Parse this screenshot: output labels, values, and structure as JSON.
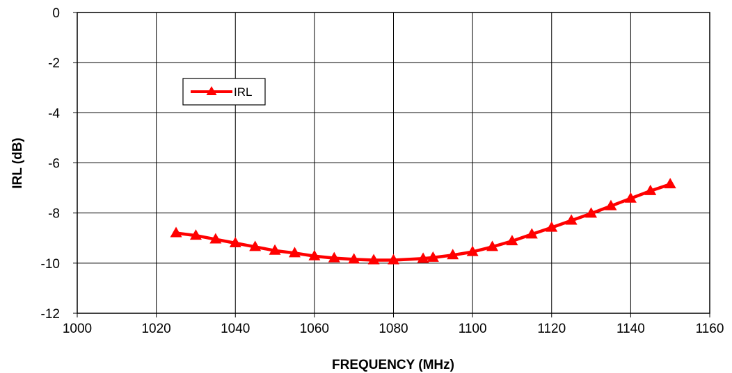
{
  "chart_data": {
    "type": "line",
    "xlabel": "FREQUENCY (MHz)",
    "ylabel": "IRL (dB)",
    "xlim": [
      1000,
      1160
    ],
    "ylim": [
      -12,
      0
    ],
    "xticks": [
      1000,
      1020,
      1040,
      1060,
      1080,
      1100,
      1120,
      1140,
      1160
    ],
    "yticks": [
      0,
      -2,
      -4,
      -6,
      -8,
      -10,
      -12
    ],
    "grid": true,
    "legend_position": "top-left",
    "series": [
      {
        "name": "IRL",
        "color": "#ff0000",
        "marker": "triangle",
        "x": [
          1025,
          1030,
          1035,
          1040,
          1045,
          1050,
          1055,
          1060,
          1065,
          1070,
          1075,
          1080,
          1087.5,
          1090,
          1095,
          1100,
          1105,
          1110,
          1115,
          1120,
          1125,
          1130,
          1135,
          1140,
          1145,
          1150
        ],
        "y": [
          -8.8,
          -8.9,
          -9.05,
          -9.2,
          -9.35,
          -9.5,
          -9.6,
          -9.72,
          -9.8,
          -9.85,
          -9.88,
          -9.88,
          -9.82,
          -9.78,
          -9.68,
          -9.55,
          -9.35,
          -9.12,
          -8.85,
          -8.58,
          -8.3,
          -8.02,
          -7.72,
          -7.42,
          -7.12,
          -6.85
        ]
      }
    ]
  }
}
